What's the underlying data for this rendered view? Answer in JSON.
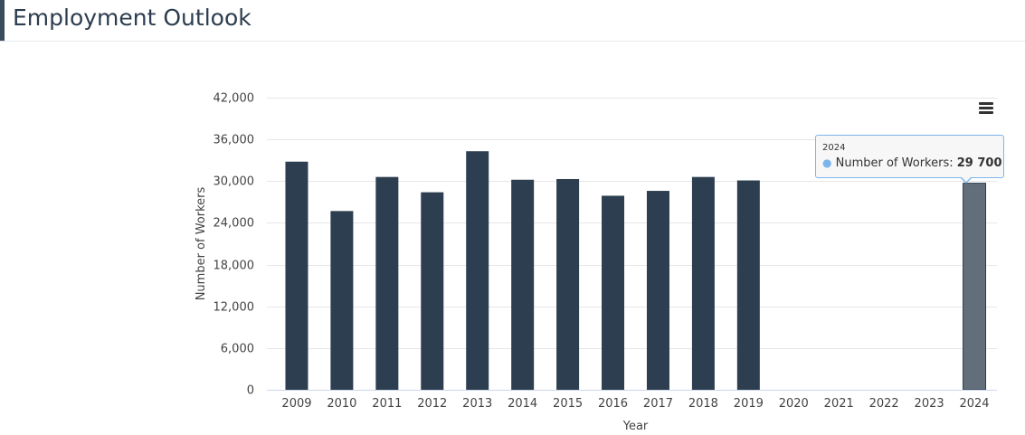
{
  "page": {
    "title": "Employment Outlook"
  },
  "colors": {
    "bar": "#2c3e4f",
    "bar_highlight": "#626f7b",
    "grid": "#e6e6e6",
    "axis_text": "#444444",
    "tooltip_border": "#7cb5ec"
  },
  "icons": {
    "menu": "hamburger-menu-icon"
  },
  "chart_data": {
    "type": "bar",
    "xlabel": "Year",
    "ylabel": "Number of Workers",
    "ylim": [
      0,
      42000
    ],
    "yticks": [
      "0",
      "6,000",
      "12,000",
      "18,000",
      "24,000",
      "30,000",
      "36,000",
      "42,000"
    ],
    "ytick_values": [
      0,
      6000,
      12000,
      18000,
      24000,
      30000,
      36000,
      42000
    ],
    "grid": true,
    "legend": "none",
    "categories": [
      "2009",
      "2010",
      "2011",
      "2012",
      "2013",
      "2014",
      "2015",
      "2016",
      "2017",
      "2018",
      "2019",
      "2020",
      "2021",
      "2022",
      "2023",
      "2024"
    ],
    "series": [
      {
        "values": [
          32800,
          25700,
          30600,
          28400,
          34300,
          30200,
          30300,
          27900,
          28600,
          30600,
          30100,
          null,
          null,
          null,
          null,
          29700
        ]
      }
    ],
    "highlighted_category": "2024"
  },
  "tooltip": {
    "header": "2024",
    "label": "Number of Workers:",
    "value": "29 700"
  }
}
